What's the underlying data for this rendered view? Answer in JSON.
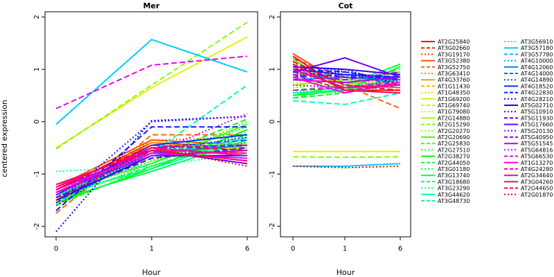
{
  "chart_data": {
    "type": "line",
    "ylabel": "centered expression",
    "xlabel": "Hour",
    "x": [
      0,
      1,
      6
    ],
    "x_tick_labels": [
      "0",
      "1",
      "6"
    ],
    "y_ticks": [
      -2,
      -1,
      0,
      1,
      2
    ],
    "y_tick_labels": [
      "-2",
      "-1",
      "0",
      "1",
      "2"
    ],
    "ylim": [
      -2.2,
      2.1
    ],
    "legend_position": "right",
    "panels": [
      {
        "title": "Mer"
      },
      {
        "title": "Cot"
      }
    ],
    "series": [
      {
        "name": "AT2G25840",
        "color": "#FF0000",
        "dash": "solid",
        "mer": [
          -1.3,
          -0.4,
          -0.5
        ],
        "cot": [
          1.25,
          0.6,
          0.6
        ]
      },
      {
        "name": "AT3G02660",
        "color": "#FF1A00",
        "dash": "dashed",
        "mer": [
          -1.6,
          -0.55,
          -0.6
        ],
        "cot": [
          1.2,
          0.85,
          0.75
        ]
      },
      {
        "name": "AT3G19170",
        "color": "#FF3300",
        "dash": "dotted",
        "mer": [
          -1.4,
          -0.6,
          -0.7
        ],
        "cot": [
          1.1,
          0.95,
          0.8
        ]
      },
      {
        "name": "AT3G52380",
        "color": "#FF4D00",
        "dash": "solid",
        "mer": [
          -1.25,
          -0.35,
          -0.45
        ],
        "cot": [
          1.3,
          0.7,
          0.65
        ]
      },
      {
        "name": "AT3G52750",
        "color": "#FF6600",
        "dash": "dashed",
        "mer": [
          -1.75,
          -0.25,
          -0.25
        ],
        "cot": [
          1.05,
          0.7,
          0.25
        ]
      },
      {
        "name": "AT3G63410",
        "color": "#FF8000",
        "dash": "dotted",
        "mer": [
          -1.55,
          -0.35,
          -0.3
        ],
        "cot": [
          1.0,
          0.8,
          0.7
        ]
      },
      {
        "name": "AT4G33760",
        "color": "#FF9900",
        "dash": "solid",
        "mer": [
          -1.5,
          -0.4,
          -0.55
        ],
        "cot": [
          0.95,
          0.75,
          0.7
        ]
      },
      {
        "name": "AT1G11430",
        "color": "#FFB300",
        "dash": "dashed",
        "mer": [
          -1.45,
          -0.45,
          -0.5
        ],
        "cot": [
          0.9,
          0.9,
          0.85
        ]
      },
      {
        "name": "AT1G48350",
        "color": "#FFCC00",
        "dash": "dotted",
        "mer": [
          -1.35,
          -0.5,
          -0.4
        ],
        "cot": [
          0.85,
          0.8,
          0.75
        ]
      },
      {
        "name": "AT1G69200",
        "color": "#E6F000",
        "dash": "solid",
        "mer": [
          -0.5,
          0.65,
          1.62
        ],
        "cot": [
          -0.57,
          -0.57,
          -0.57
        ]
      },
      {
        "name": "AT1G69740",
        "color": "#CCFF00",
        "dash": "dashed",
        "mer": [
          -1.4,
          -0.7,
          -0.55
        ],
        "cot": [
          0.8,
          0.85,
          0.9
        ]
      },
      {
        "name": "AT1G79080",
        "color": "#B3FF00",
        "dash": "dotted",
        "mer": [
          -1.55,
          -0.65,
          -0.45
        ],
        "cot": [
          0.75,
          0.7,
          0.85
        ]
      },
      {
        "name": "AT2G14880",
        "color": "#99FF00",
        "dash": "solid",
        "mer": [
          -1.5,
          -0.6,
          -0.5
        ],
        "cot": [
          0.7,
          0.8,
          0.95
        ]
      },
      {
        "name": "AT2G15290",
        "color": "#80FF00",
        "dash": "dashed",
        "mer": [
          -0.52,
          0.7,
          1.9
        ],
        "cot": [
          -0.67,
          -0.68,
          -0.67
        ]
      },
      {
        "name": "AT2G20270",
        "color": "#66FF00",
        "dash": "dotted",
        "mer": [
          -1.45,
          -0.75,
          -0.4
        ],
        "cot": [
          0.65,
          0.75,
          0.8
        ]
      },
      {
        "name": "AT2G20690",
        "color": "#4DFF00",
        "dash": "solid",
        "mer": [
          -1.35,
          -0.8,
          -0.05
        ],
        "cot": [
          1.2,
          0.55,
          0.85
        ]
      },
      {
        "name": "AT2G25830",
        "color": "#33FF00",
        "dash": "dashed",
        "mer": [
          -1.6,
          -0.85,
          -0.3
        ],
        "cot": [
          0.6,
          0.7,
          1.0
        ]
      },
      {
        "name": "AT2G27510",
        "color": "#1AFF00",
        "dash": "dotted",
        "mer": [
          -1.5,
          -0.8,
          0.0
        ],
        "cot": [
          0.55,
          0.65,
          0.95
        ]
      },
      {
        "name": "AT2G38270",
        "color": "#00FF00",
        "dash": "solid",
        "mer": [
          -1.55,
          -0.9,
          -0.15
        ],
        "cot": [
          0.5,
          0.6,
          1.05
        ]
      },
      {
        "name": "AT2G44050",
        "color": "#00FF1A",
        "dash": "dashed",
        "mer": [
          -1.45,
          -0.7,
          0.05
        ],
        "cot": [
          0.45,
          0.55,
          0.9
        ]
      },
      {
        "name": "AT3G01180",
        "color": "#00FF33",
        "dash": "dotted",
        "mer": [
          -1.4,
          -0.75,
          -0.1
        ],
        "cot": [
          0.55,
          0.6,
          0.85
        ]
      },
      {
        "name": "AT3G13740",
        "color": "#00FF4D",
        "dash": "solid",
        "mer": [
          -1.5,
          -0.95,
          -0.35
        ],
        "cot": [
          0.5,
          0.7,
          1.1
        ]
      },
      {
        "name": "AT3G18680",
        "color": "#00FF66",
        "dash": "dashed",
        "mer": [
          -1.45,
          -0.85,
          -0.25
        ],
        "cot": [
          0.45,
          0.65,
          0.8
        ]
      },
      {
        "name": "AT3G23290",
        "color": "#00FF80",
        "dash": "dotted",
        "mer": [
          -1.35,
          -0.8,
          -0.2
        ],
        "cot": [
          0.6,
          0.55,
          0.7
        ]
      },
      {
        "name": "AT3G44620",
        "color": "#00FF99",
        "dash": "solid",
        "mer": [
          -1.4,
          -0.9,
          -0.3
        ],
        "cot": [
          0.55,
          0.6,
          0.75
        ]
      },
      {
        "name": "AT3G48730",
        "color": "#00FFB3",
        "dash": "dashed",
        "mer": [
          -1.5,
          -0.6,
          0.7
        ],
        "cot": [
          0.4,
          0.33,
          0.55
        ]
      },
      {
        "name": "AT3G56910",
        "color": "#00FFE6",
        "dash": "dotted",
        "mer": [
          -0.95,
          -0.85,
          -0.6
        ],
        "cot": [
          0.85,
          0.8,
          0.85
        ]
      },
      {
        "name": "AT3G57180",
        "color": "#00CCFF",
        "dash": "solid",
        "mer": [
          -0.05,
          1.57,
          0.95
        ],
        "cot": [
          -0.85,
          -0.85,
          -0.8
        ]
      },
      {
        "name": "AT3G57780",
        "color": "#00B3FF",
        "dash": "dashed",
        "mer": [
          -1.45,
          -0.55,
          -0.45
        ],
        "cot": [
          0.95,
          0.85,
          0.8
        ]
      },
      {
        "name": "AT4G10000",
        "color": "#0099FF",
        "dash": "dotted",
        "mer": [
          -1.4,
          -0.6,
          -0.4
        ],
        "cot": [
          0.9,
          0.9,
          0.75
        ]
      },
      {
        "name": "AT4G12060",
        "color": "#0080FF",
        "dash": "solid",
        "mer": [
          -1.35,
          -0.6,
          -0.45
        ],
        "cot": [
          0.8,
          0.85,
          0.8
        ]
      },
      {
        "name": "AT4G14000",
        "color": "#0066FF",
        "dash": "dashed",
        "mer": [
          -1.55,
          -0.5,
          -0.35
        ],
        "cot": [
          0.85,
          0.9,
          0.7
        ]
      },
      {
        "name": "AT4G14890",
        "color": "#004DFF",
        "dash": "dotted",
        "mer": [
          -1.6,
          -0.55,
          -0.3
        ],
        "cot": [
          0.9,
          0.95,
          0.75
        ]
      },
      {
        "name": "AT4G18520",
        "color": "#0033FF",
        "dash": "solid",
        "mer": [
          -1.4,
          -0.45,
          -0.25
        ],
        "cot": [
          1.0,
          0.9,
          0.85
        ]
      },
      {
        "name": "AT4G22830",
        "color": "#001AFF",
        "dash": "dashed",
        "mer": [
          -1.7,
          -0.1,
          -0.1
        ],
        "cot": [
          1.0,
          0.95,
          0.8
        ]
      },
      {
        "name": "AT4G28210",
        "color": "#0000FF",
        "dash": "dotted",
        "mer": [
          -2.1,
          0.02,
          0.1
        ],
        "cot": [
          1.05,
          1.0,
          0.7
        ]
      },
      {
        "name": "AT5G02710",
        "color": "#1A00FF",
        "dash": "solid",
        "mer": [
          -1.5,
          -0.65,
          -0.65
        ],
        "cot": [
          1.05,
          1.0,
          0.9
        ]
      },
      {
        "name": "AT5G10910",
        "color": "#3300FF",
        "dash": "dotted",
        "mer": [
          -1.55,
          0.0,
          0.1
        ],
        "cot": [
          1.0,
          0.9,
          0.8
        ]
      },
      {
        "name": "AT5G11930",
        "color": "#4D00FF",
        "dash": "dashed",
        "mer": [
          -1.45,
          -0.7,
          -0.5
        ],
        "cot": [
          0.95,
          0.85,
          0.85
        ]
      },
      {
        "name": "AT5G17660",
        "color": "#6600FF",
        "dash": "solid",
        "mer": [
          -1.3,
          -0.55,
          -0.8
        ],
        "cot": [
          0.95,
          1.22,
          0.85
        ]
      },
      {
        "name": "AT5G20130",
        "color": "#8000FF",
        "dash": "dotted",
        "mer": [
          -1.45,
          -0.6,
          -0.6
        ],
        "cot": [
          0.85,
          1.0,
          0.9
        ]
      },
      {
        "name": "AT5G40950",
        "color": "#9900FF",
        "dash": "dashed",
        "mer": [
          -1.4,
          -0.5,
          -0.45
        ],
        "cot": [
          0.9,
          0.8,
          0.95
        ]
      },
      {
        "name": "AT5G51545",
        "color": "#B300FF",
        "dash": "solid",
        "mer": [
          -1.35,
          -0.65,
          -0.55
        ],
        "cot": [
          0.8,
          0.75,
          0.85
        ]
      },
      {
        "name": "AT5G64816",
        "color": "#CC00FF",
        "dash": "dotted",
        "mer": [
          -1.25,
          -0.6,
          0.15
        ],
        "cot": [
          0.7,
          0.65,
          0.8
        ]
      },
      {
        "name": "AT5G66530",
        "color": "#E600FF",
        "dash": "dashed",
        "mer": [
          0.25,
          1.08,
          1.25
        ],
        "cot": [
          0.6,
          0.65,
          0.75
        ]
      },
      {
        "name": "AT1G13270",
        "color": "#FF00E6",
        "dash": "solid",
        "mer": [
          -1.3,
          -0.6,
          -0.7
        ],
        "cot": [
          0.85,
          0.55,
          0.75
        ]
      },
      {
        "name": "AT4G24280",
        "color": "#FF00B3",
        "dash": "dashed",
        "mer": [
          -1.35,
          -0.55,
          -0.6
        ],
        "cot": [
          0.9,
          0.6,
          0.7
        ]
      },
      {
        "name": "AT2G34640",
        "color": "#FF0099",
        "dash": "solid",
        "mer": [
          -1.25,
          -0.5,
          -0.65
        ],
        "cot": [
          1.0,
          0.65,
          0.7
        ]
      },
      {
        "name": "AT3G04260",
        "color": "#FF0066",
        "dash": "solid",
        "mer": [
          -1.2,
          -0.55,
          -0.75
        ],
        "cot": [
          1.1,
          0.6,
          0.55
        ]
      },
      {
        "name": "AT2G44650",
        "color": "#FF0033",
        "dash": "dashed",
        "mer": [
          -1.3,
          -0.45,
          -0.55
        ],
        "cot": [
          1.15,
          0.7,
          0.6
        ]
      },
      {
        "name": "AT2G01870",
        "color": "#FF0000",
        "dash": "dotted",
        "mer": [
          -1.5,
          -0.5,
          -0.85
        ],
        "cot": [
          -0.85,
          -0.88,
          -0.85
        ]
      }
    ]
  }
}
